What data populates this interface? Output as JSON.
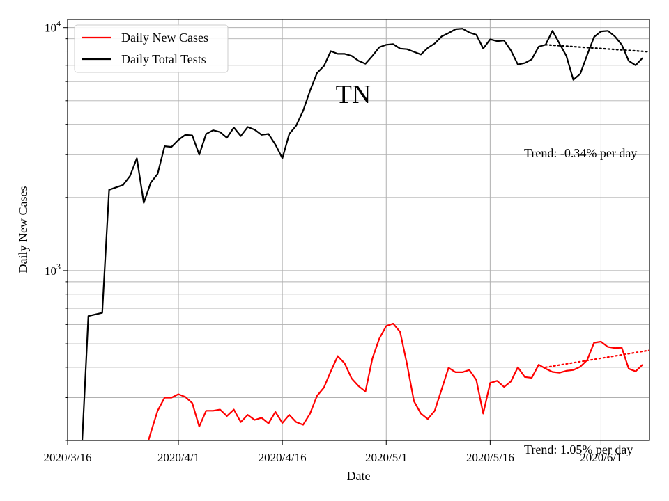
{
  "chart_data": {
    "type": "line",
    "title": "",
    "xlabel": "Date",
    "ylabel": "Daily New Cases",
    "yscale": "log",
    "ylim": [
      200,
      10800
    ],
    "xlim": [
      "2020-03-16",
      "2020-06-08"
    ],
    "grid": true,
    "legend": {
      "placement": "top-left",
      "entries": [
        "Daily New Cases",
        "Daily Total Tests"
      ]
    },
    "x_ticks": [
      {
        "label": "2020/3/16",
        "date": "2020-03-16"
      },
      {
        "label": "2020/4/1",
        "date": "2020-04-01"
      },
      {
        "label": "2020/4/16",
        "date": "2020-04-16"
      },
      {
        "label": "2020/5/1",
        "date": "2020-05-01"
      },
      {
        "label": "2020/5/16",
        "date": "2020-05-16"
      },
      {
        "label": "2020/6/1",
        "date": "2020-06-01"
      }
    ],
    "y_major_ticks": [
      {
        "value": 1000,
        "base": "10",
        "exp": "3"
      },
      {
        "value": 10000,
        "base": "10",
        "exp": "4"
      }
    ],
    "annotations": {
      "state": "TN",
      "tests_trend": "Trend: -0.34% per day",
      "cases_trend": "Trend: 1.05% per day"
    },
    "series": [
      {
        "name": "Daily Total Tests",
        "color": "#000000",
        "points": [
          [
            "2020-03-18",
            172
          ],
          [
            "2020-03-19",
            650
          ],
          [
            "2020-03-21",
            670
          ],
          [
            "2020-03-22",
            2150
          ],
          [
            "2020-03-23",
            2200
          ],
          [
            "2020-03-24",
            2250
          ],
          [
            "2020-03-25",
            2450
          ],
          [
            "2020-03-26",
            2900
          ],
          [
            "2020-03-27",
            1900
          ],
          [
            "2020-03-28",
            2300
          ],
          [
            "2020-03-29",
            2500
          ],
          [
            "2020-03-30",
            3250
          ],
          [
            "2020-03-31",
            3230
          ],
          [
            "2020-04-01",
            3450
          ],
          [
            "2020-04-02",
            3620
          ],
          [
            "2020-04-03",
            3600
          ],
          [
            "2020-04-04",
            3000
          ],
          [
            "2020-04-05",
            3650
          ],
          [
            "2020-04-06",
            3780
          ],
          [
            "2020-04-07",
            3720
          ],
          [
            "2020-04-08",
            3520
          ],
          [
            "2020-04-09",
            3880
          ],
          [
            "2020-04-10",
            3580
          ],
          [
            "2020-04-11",
            3900
          ],
          [
            "2020-04-12",
            3800
          ],
          [
            "2020-04-13",
            3620
          ],
          [
            "2020-04-14",
            3650
          ],
          [
            "2020-04-15",
            3300
          ],
          [
            "2020-04-16",
            2900
          ],
          [
            "2020-04-17",
            3650
          ],
          [
            "2020-04-18",
            3950
          ],
          [
            "2020-04-19",
            4550
          ],
          [
            "2020-04-20",
            5500
          ],
          [
            "2020-04-21",
            6500
          ],
          [
            "2020-04-22",
            6950
          ],
          [
            "2020-04-23",
            8000
          ],
          [
            "2020-04-24",
            7800
          ],
          [
            "2020-04-25",
            7800
          ],
          [
            "2020-04-26",
            7650
          ],
          [
            "2020-04-27",
            7300
          ],
          [
            "2020-04-28",
            7100
          ],
          [
            "2020-04-29",
            7650
          ],
          [
            "2020-04-30",
            8300
          ],
          [
            "2020-05-01",
            8500
          ],
          [
            "2020-05-02",
            8550
          ],
          [
            "2020-05-03",
            8200
          ],
          [
            "2020-05-04",
            8150
          ],
          [
            "2020-05-05",
            7950
          ],
          [
            "2020-05-06",
            7750
          ],
          [
            "2020-05-07",
            8250
          ],
          [
            "2020-05-08",
            8600
          ],
          [
            "2020-05-09",
            9200
          ],
          [
            "2020-05-10",
            9500
          ],
          [
            "2020-05-11",
            9850
          ],
          [
            "2020-05-12",
            9900
          ],
          [
            "2020-05-13",
            9550
          ],
          [
            "2020-05-14",
            9350
          ],
          [
            "2020-05-15",
            8200
          ],
          [
            "2020-05-16",
            8950
          ],
          [
            "2020-05-17",
            8800
          ],
          [
            "2020-05-18",
            8850
          ],
          [
            "2020-05-19",
            8050
          ],
          [
            "2020-05-20",
            7050
          ],
          [
            "2020-05-21",
            7150
          ],
          [
            "2020-05-22",
            7400
          ],
          [
            "2020-05-23",
            8350
          ],
          [
            "2020-05-24",
            8500
          ],
          [
            "2020-05-25",
            9700
          ],
          [
            "2020-05-26",
            8600
          ],
          [
            "2020-05-27",
            7650
          ],
          [
            "2020-05-28",
            6100
          ],
          [
            "2020-05-29",
            6450
          ],
          [
            "2020-05-30",
            7700
          ],
          [
            "2020-05-31",
            9150
          ],
          [
            "2020-06-01",
            9650
          ],
          [
            "2020-06-02",
            9700
          ],
          [
            "2020-06-03",
            9200
          ],
          [
            "2020-06-04",
            8500
          ],
          [
            "2020-06-05",
            7300
          ],
          [
            "2020-06-06",
            7000
          ],
          [
            "2020-06-07",
            7500
          ]
        ]
      },
      {
        "name": "Daily New Cases",
        "color": "#ff0000",
        "points": [
          [
            "2020-03-27",
            172
          ],
          [
            "2020-03-28",
            215
          ],
          [
            "2020-03-29",
            265
          ],
          [
            "2020-03-30",
            300
          ],
          [
            "2020-03-31",
            300
          ],
          [
            "2020-04-01",
            310
          ],
          [
            "2020-04-02",
            302
          ],
          [
            "2020-04-03",
            285
          ],
          [
            "2020-04-04",
            228
          ],
          [
            "2020-04-05",
            265
          ],
          [
            "2020-04-06",
            265
          ],
          [
            "2020-04-07",
            268
          ],
          [
            "2020-04-08",
            252
          ],
          [
            "2020-04-09",
            268
          ],
          [
            "2020-04-10",
            238
          ],
          [
            "2020-04-11",
            255
          ],
          [
            "2020-04-12",
            243
          ],
          [
            "2020-04-13",
            248
          ],
          [
            "2020-04-14",
            235
          ],
          [
            "2020-04-15",
            262
          ],
          [
            "2020-04-16",
            236
          ],
          [
            "2020-04-17",
            255
          ],
          [
            "2020-04-18",
            238
          ],
          [
            "2020-04-19",
            232
          ],
          [
            "2020-04-20",
            258
          ],
          [
            "2020-04-21",
            305
          ],
          [
            "2020-04-22",
            330
          ],
          [
            "2020-04-23",
            385
          ],
          [
            "2020-04-24",
            445
          ],
          [
            "2020-04-25",
            415
          ],
          [
            "2020-04-26",
            360
          ],
          [
            "2020-04-27",
            335
          ],
          [
            "2020-04-28",
            318
          ],
          [
            "2020-04-29",
            435
          ],
          [
            "2020-04-30",
            525
          ],
          [
            "2020-05-01",
            592
          ],
          [
            "2020-05-02",
            605
          ],
          [
            "2020-05-03",
            560
          ],
          [
            "2020-05-04",
            412
          ],
          [
            "2020-05-05",
            290
          ],
          [
            "2020-05-06",
            258
          ],
          [
            "2020-05-07",
            245
          ],
          [
            "2020-05-08",
            265
          ],
          [
            "2020-05-09",
            325
          ],
          [
            "2020-05-10",
            398
          ],
          [
            "2020-05-11",
            382
          ],
          [
            "2020-05-12",
            382
          ],
          [
            "2020-05-13",
            390
          ],
          [
            "2020-05-14",
            355
          ],
          [
            "2020-05-15",
            258
          ],
          [
            "2020-05-16",
            345
          ],
          [
            "2020-05-17",
            352
          ],
          [
            "2020-05-18",
            332
          ],
          [
            "2020-05-19",
            350
          ],
          [
            "2020-05-20",
            400
          ],
          [
            "2020-05-21",
            365
          ],
          [
            "2020-05-22",
            362
          ],
          [
            "2020-05-23",
            410
          ],
          [
            "2020-05-24",
            395
          ],
          [
            "2020-05-25",
            383
          ],
          [
            "2020-05-26",
            380
          ],
          [
            "2020-05-27",
            387
          ],
          [
            "2020-05-28",
            390
          ],
          [
            "2020-05-29",
            402
          ],
          [
            "2020-05-30",
            428
          ],
          [
            "2020-05-31",
            505
          ],
          [
            "2020-06-01",
            510
          ],
          [
            "2020-06-02",
            485
          ],
          [
            "2020-06-03",
            480
          ],
          [
            "2020-06-04",
            482
          ],
          [
            "2020-06-05",
            395
          ],
          [
            "2020-06-06",
            385
          ],
          [
            "2020-06-07",
            410
          ]
        ]
      }
    ],
    "trend_lines": [
      {
        "color": "#000000",
        "start": [
          "2020-05-24",
          8500
        ],
        "end": [
          "2020-06-08",
          7950
        ]
      },
      {
        "color": "#ff0000",
        "start": [
          "2020-05-24",
          400
        ],
        "end": [
          "2020-06-08",
          470
        ]
      }
    ]
  }
}
